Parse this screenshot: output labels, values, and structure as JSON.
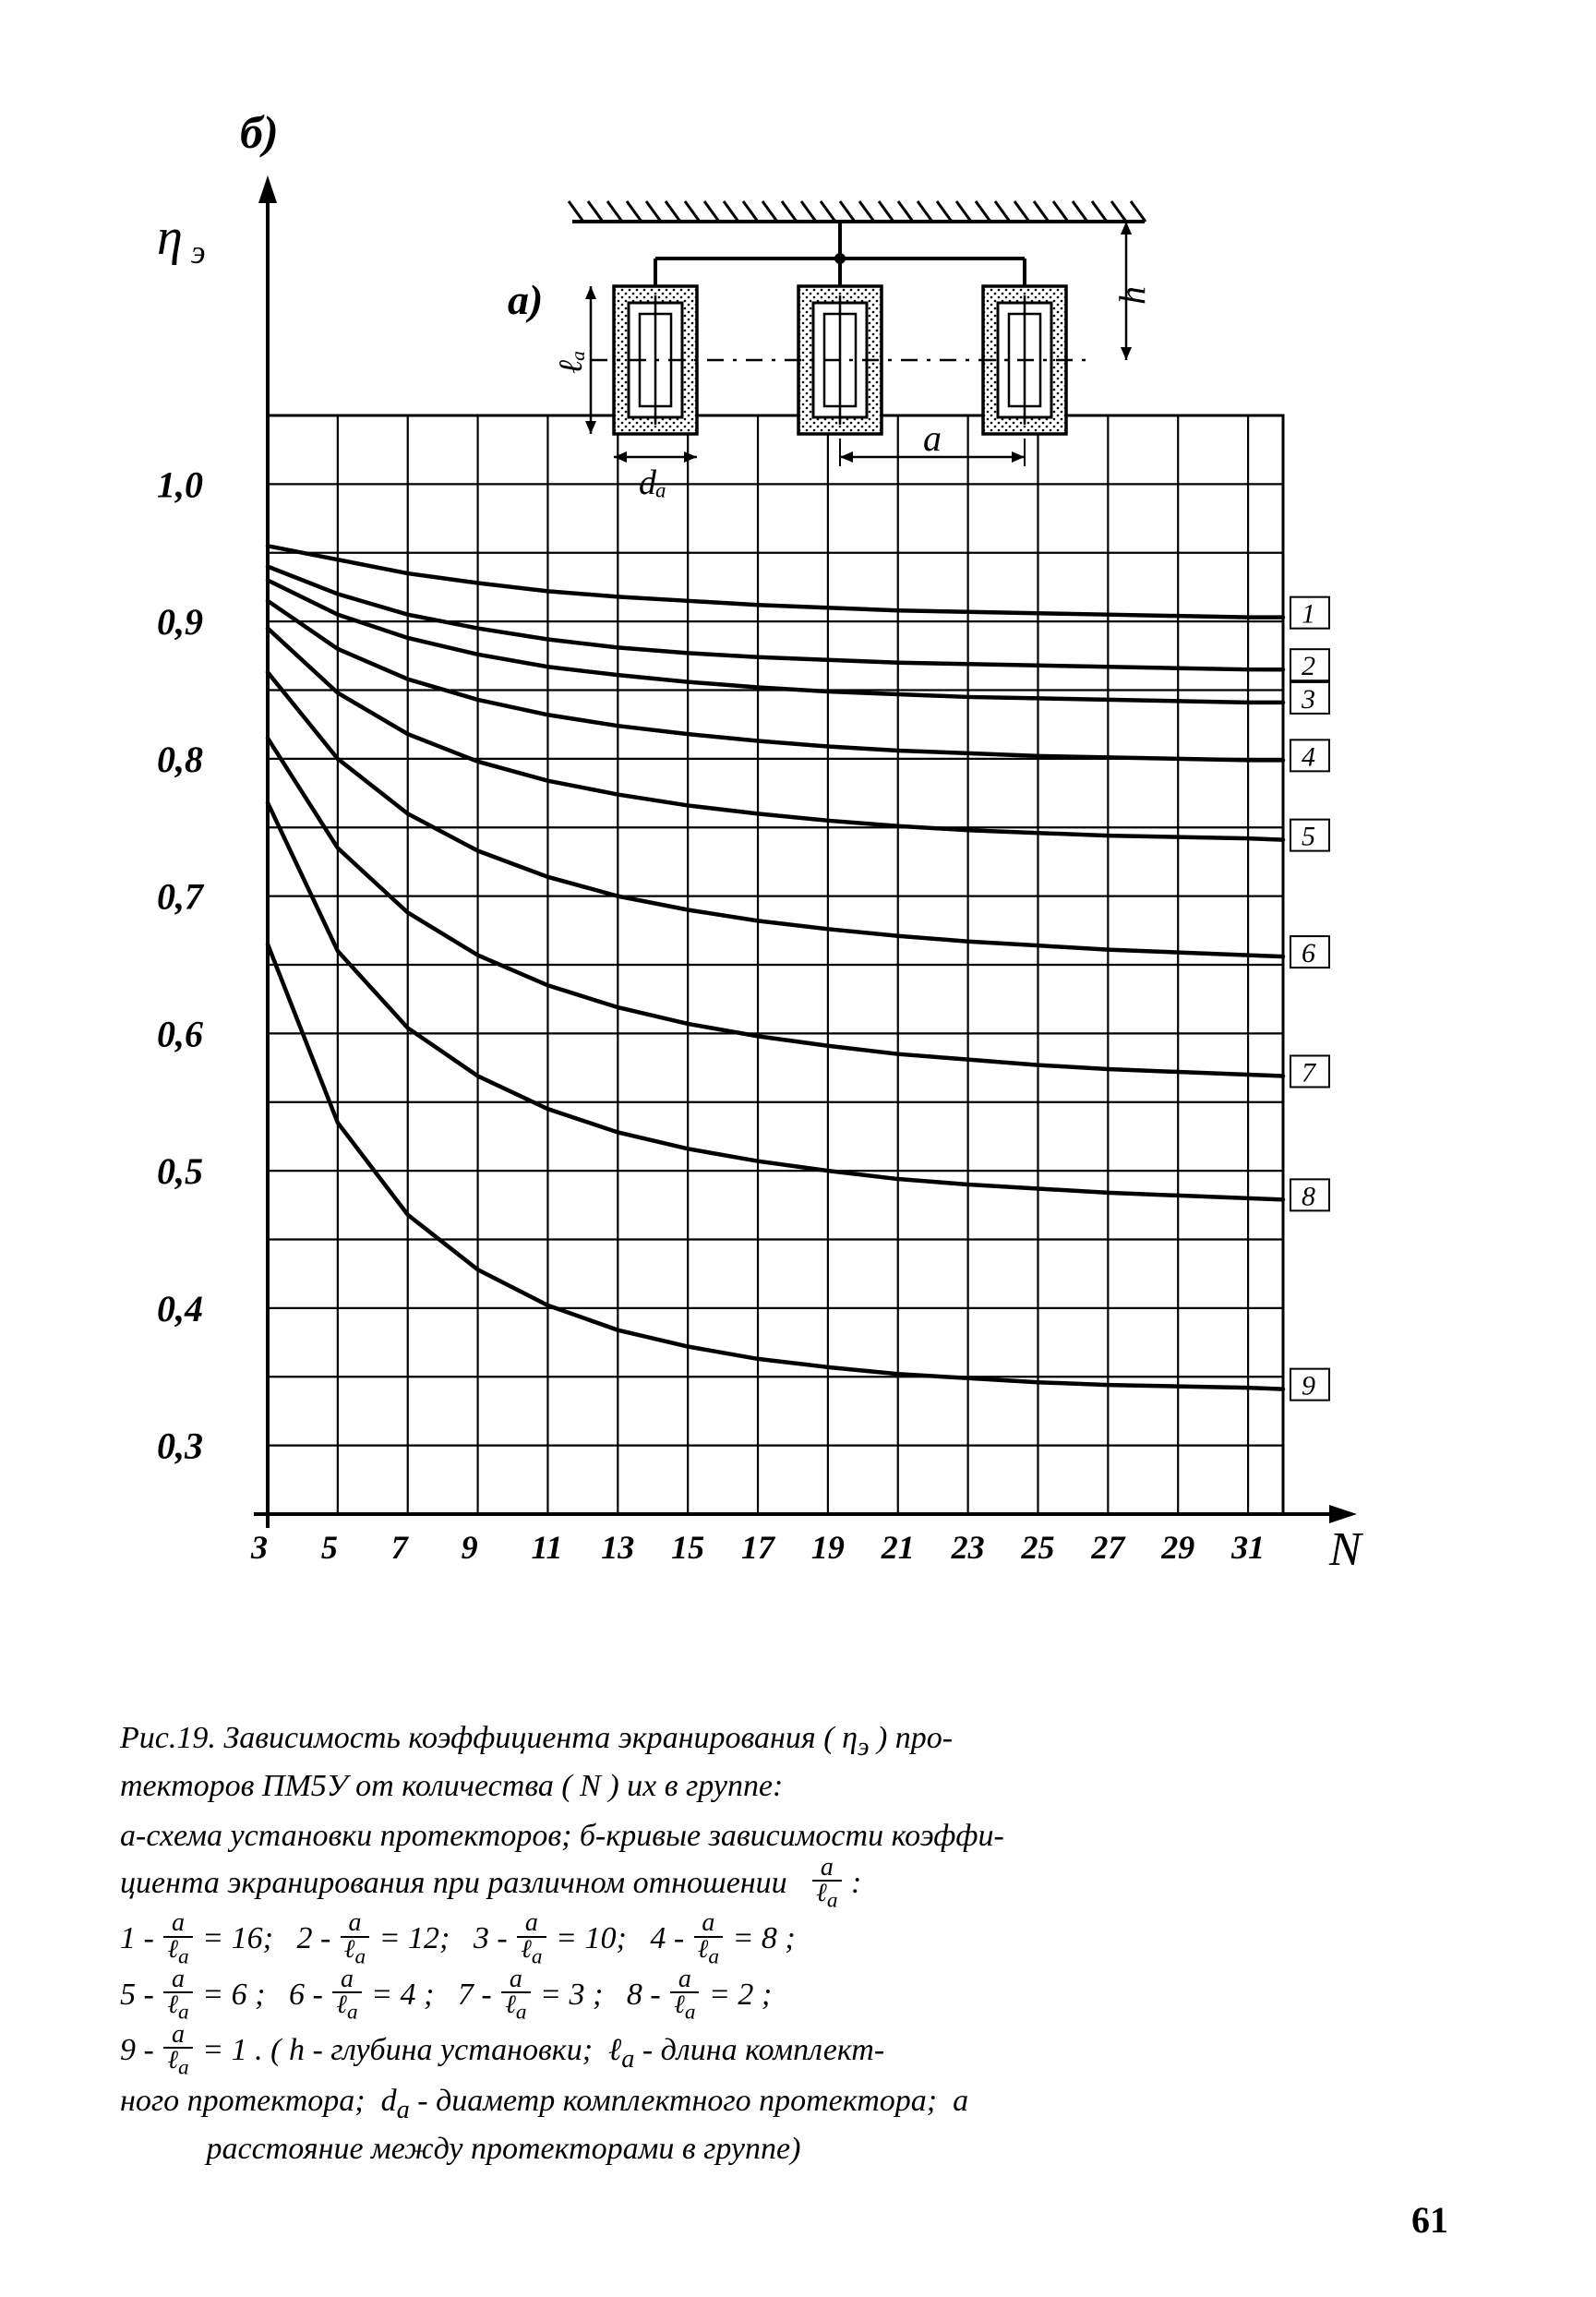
{
  "chart": {
    "type": "line",
    "background_color": "#ffffff",
    "stroke_color": "#000000",
    "grid_stroke_width": 2.2,
    "frame_stroke_width": 3,
    "curve_stroke_width": 4.5,
    "axis_stroke_width": 4,
    "font_family": "Times New Roman, serif",
    "axis_label_fontsize": 40,
    "tick_fontsize": 36,
    "label_b": "б)",
    "label_a": "а)",
    "label_da": "dₐ",
    "label_a_dim": "a",
    "label_la": "ℓₐ",
    "label_h": "h",
    "y_axis_label": "η э",
    "x_axis_label": "N",
    "x_ticks": [
      3,
      5,
      7,
      9,
      11,
      13,
      15,
      17,
      19,
      21,
      23,
      25,
      27,
      29,
      31
    ],
    "x_range": [
      3,
      32
    ],
    "y_ticks": [
      0.3,
      0.4,
      0.5,
      0.6,
      0.7,
      0.8,
      0.9,
      1.0
    ],
    "y_tick_labels": [
      "0,3",
      "0,4",
      "0,5",
      "0,6",
      "0,7",
      "0,8",
      "0,9",
      "1,0"
    ],
    "y_range": [
      0.25,
      1.05
    ],
    "curve_labels": [
      "1",
      "2",
      "3",
      "4",
      "5",
      "6",
      "7",
      "8",
      "9"
    ],
    "curves": [
      {
        "id": "1",
        "pts": [
          [
            3,
            0.955
          ],
          [
            5,
            0.945
          ],
          [
            7,
            0.935
          ],
          [
            9,
            0.928
          ],
          [
            11,
            0.922
          ],
          [
            13,
            0.918
          ],
          [
            15,
            0.915
          ],
          [
            17,
            0.912
          ],
          [
            19,
            0.91
          ],
          [
            21,
            0.908
          ],
          [
            23,
            0.907
          ],
          [
            25,
            0.906
          ],
          [
            27,
            0.905
          ],
          [
            29,
            0.904
          ],
          [
            31,
            0.903
          ],
          [
            32,
            0.903
          ]
        ]
      },
      {
        "id": "2",
        "pts": [
          [
            3,
            0.94
          ],
          [
            5,
            0.92
          ],
          [
            7,
            0.905
          ],
          [
            9,
            0.895
          ],
          [
            11,
            0.887
          ],
          [
            13,
            0.881
          ],
          [
            15,
            0.877
          ],
          [
            17,
            0.874
          ],
          [
            19,
            0.872
          ],
          [
            21,
            0.87
          ],
          [
            23,
            0.869
          ],
          [
            25,
            0.868
          ],
          [
            27,
            0.867
          ],
          [
            29,
            0.866
          ],
          [
            31,
            0.865
          ],
          [
            32,
            0.865
          ]
        ]
      },
      {
        "id": "3",
        "pts": [
          [
            3,
            0.93
          ],
          [
            5,
            0.905
          ],
          [
            7,
            0.888
          ],
          [
            9,
            0.876
          ],
          [
            11,
            0.867
          ],
          [
            13,
            0.861
          ],
          [
            15,
            0.856
          ],
          [
            17,
            0.852
          ],
          [
            19,
            0.849
          ],
          [
            21,
            0.847
          ],
          [
            23,
            0.845
          ],
          [
            25,
            0.844
          ],
          [
            27,
            0.843
          ],
          [
            29,
            0.842
          ],
          [
            31,
            0.841
          ],
          [
            32,
            0.841
          ]
        ]
      },
      {
        "id": "4",
        "pts": [
          [
            3,
            0.915
          ],
          [
            5,
            0.88
          ],
          [
            7,
            0.858
          ],
          [
            9,
            0.843
          ],
          [
            11,
            0.832
          ],
          [
            13,
            0.824
          ],
          [
            15,
            0.818
          ],
          [
            17,
            0.813
          ],
          [
            19,
            0.809
          ],
          [
            21,
            0.806
          ],
          [
            23,
            0.804
          ],
          [
            25,
            0.802
          ],
          [
            27,
            0.801
          ],
          [
            29,
            0.8
          ],
          [
            31,
            0.799
          ],
          [
            32,
            0.799
          ]
        ]
      },
      {
        "id": "5",
        "pts": [
          [
            3,
            0.895
          ],
          [
            5,
            0.848
          ],
          [
            7,
            0.818
          ],
          [
            9,
            0.798
          ],
          [
            11,
            0.784
          ],
          [
            13,
            0.774
          ],
          [
            15,
            0.766
          ],
          [
            17,
            0.76
          ],
          [
            19,
            0.755
          ],
          [
            21,
            0.751
          ],
          [
            23,
            0.748
          ],
          [
            25,
            0.746
          ],
          [
            27,
            0.744
          ],
          [
            29,
            0.743
          ],
          [
            31,
            0.742
          ],
          [
            32,
            0.741
          ]
        ]
      },
      {
        "id": "6",
        "pts": [
          [
            3,
            0.863
          ],
          [
            5,
            0.8
          ],
          [
            7,
            0.76
          ],
          [
            9,
            0.733
          ],
          [
            11,
            0.714
          ],
          [
            13,
            0.7
          ],
          [
            15,
            0.69
          ],
          [
            17,
            0.682
          ],
          [
            19,
            0.676
          ],
          [
            21,
            0.671
          ],
          [
            23,
            0.667
          ],
          [
            25,
            0.664
          ],
          [
            27,
            0.661
          ],
          [
            29,
            0.659
          ],
          [
            31,
            0.657
          ],
          [
            32,
            0.656
          ]
        ]
      },
      {
        "id": "7",
        "pts": [
          [
            3,
            0.815
          ],
          [
            5,
            0.735
          ],
          [
            7,
            0.688
          ],
          [
            9,
            0.657
          ],
          [
            11,
            0.635
          ],
          [
            13,
            0.619
          ],
          [
            15,
            0.607
          ],
          [
            17,
            0.598
          ],
          [
            19,
            0.591
          ],
          [
            21,
            0.585
          ],
          [
            23,
            0.581
          ],
          [
            25,
            0.577
          ],
          [
            27,
            0.574
          ],
          [
            29,
            0.572
          ],
          [
            31,
            0.57
          ],
          [
            32,
            0.569
          ]
        ]
      },
      {
        "id": "8",
        "pts": [
          [
            3,
            0.768
          ],
          [
            5,
            0.66
          ],
          [
            7,
            0.604
          ],
          [
            9,
            0.569
          ],
          [
            11,
            0.545
          ],
          [
            13,
            0.528
          ],
          [
            15,
            0.516
          ],
          [
            17,
            0.507
          ],
          [
            19,
            0.5
          ],
          [
            21,
            0.494
          ],
          [
            23,
            0.49
          ],
          [
            25,
            0.487
          ],
          [
            27,
            0.484
          ],
          [
            29,
            0.482
          ],
          [
            31,
            0.48
          ],
          [
            32,
            0.479
          ]
        ]
      },
      {
        "id": "9",
        "pts": [
          [
            3,
            0.665
          ],
          [
            5,
            0.535
          ],
          [
            7,
            0.468
          ],
          [
            9,
            0.428
          ],
          [
            11,
            0.402
          ],
          [
            13,
            0.384
          ],
          [
            15,
            0.372
          ],
          [
            17,
            0.363
          ],
          [
            19,
            0.357
          ],
          [
            21,
            0.352
          ],
          [
            23,
            0.349
          ],
          [
            25,
            0.346
          ],
          [
            27,
            0.344
          ],
          [
            29,
            0.343
          ],
          [
            31,
            0.342
          ],
          [
            32,
            0.341
          ]
        ]
      }
    ]
  },
  "caption": {
    "fig_label": "Рис.19.",
    "main1": "Зависимость коэффициента экранирования ( η э ) протекторов ПМ5У от количества ( N ) их в группе:",
    "sub_a": "а-схема установки протекторов; б-кривые зависимости коэффициента экранирования при различном отношении",
    "ratio_text": "a/ℓₐ :",
    "lines": [
      "1 - a/ℓₐ = 16;  2 - a/ℓₐ = 12;  3 - a/ℓₐ = 10;  4 - a/ℓₐ = 8 ;",
      "5 - a/ℓₐ = 6 ;  6 - a/ℓₐ = 4 ;  7 - a/ℓₐ = 3 ;  8 - a/ℓₐ = 2 ;",
      "9 - a/ℓₐ = 1 . ( h - глубина установки;  ℓₐ - длина комплектного протектора;  dₐ - диаметр комплектного протектора;  a  расстояние между протекторами в группе)"
    ],
    "pagenum": "61"
  }
}
